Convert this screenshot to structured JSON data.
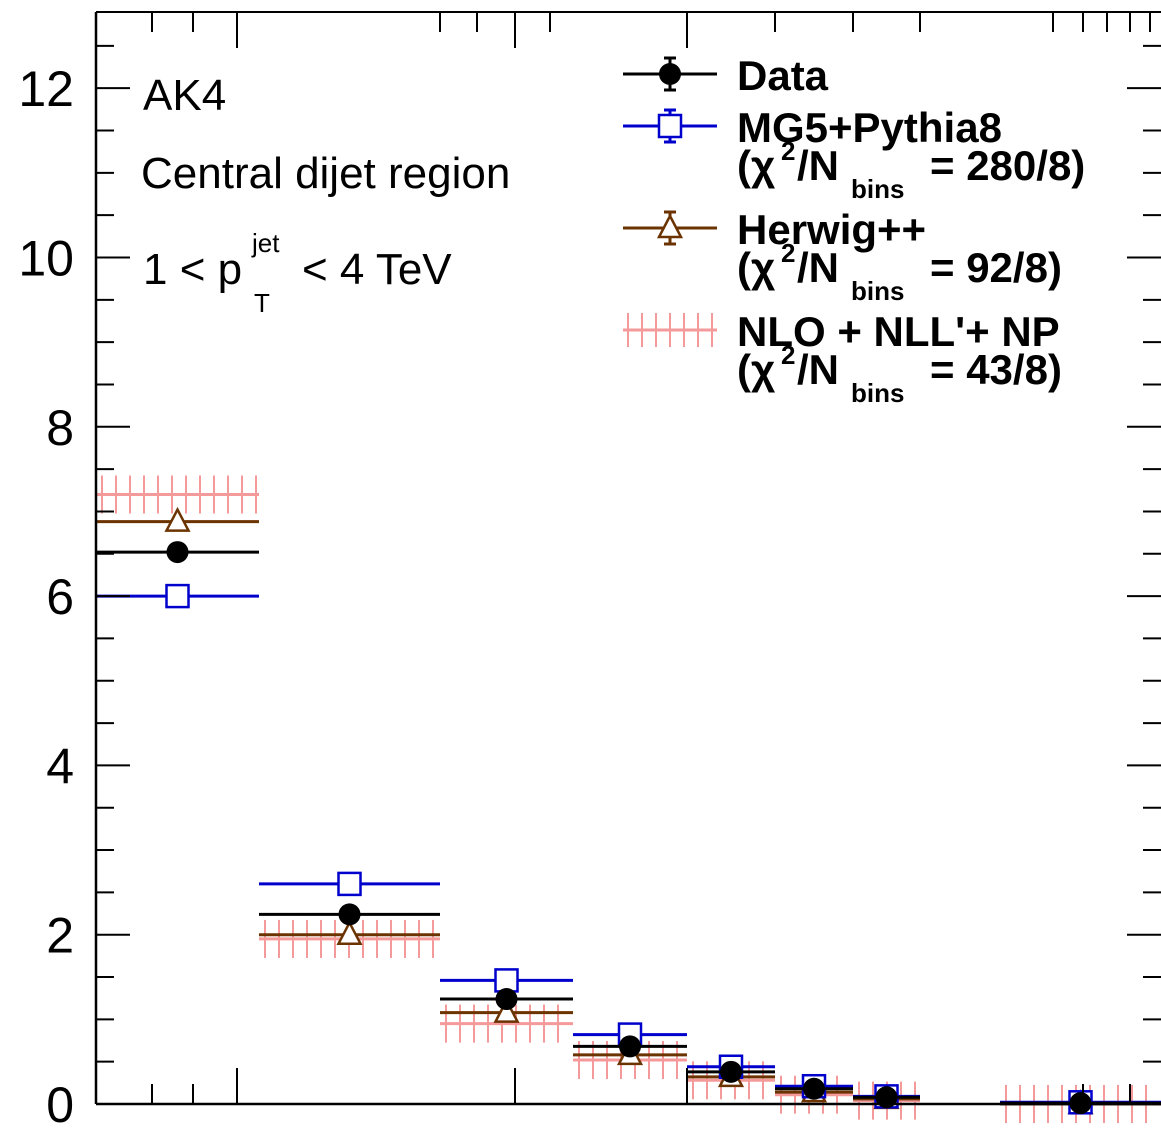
{
  "chart_data": {
    "type": "scatter",
    "x_bin_edges": [
      0,
      1,
      2,
      3,
      4,
      5,
      6,
      7,
      8,
      9
    ],
    "ylim": [
      0,
      12.9
    ],
    "y_ticks": [
      "0",
      "2",
      "4",
      "6",
      "8",
      "10",
      "12"
    ],
    "xlabel": "",
    "ylabel": "",
    "grid": false,
    "legend_position": "top-right",
    "annotations": {
      "jet_algo": "AK4",
      "region": "Central dijet region",
      "pt_prefix": "1 < p",
      "pt_sup": "jet",
      "pt_sub": "T",
      "pt_suffix": "< 4 TeV"
    },
    "series": [
      {
        "name": "NLO + NLL'+ NP",
        "chi2_label": "= 43/8)",
        "color": "#f59a9a",
        "style": "hatched-band",
        "values": [
          7.2,
          1.95,
          0.95,
          0.52,
          0.28,
          0.11,
          0.04,
          null,
          0.0
        ]
      },
      {
        "name": "Herwig++",
        "chi2_label": "= 92/8)",
        "color": "#6b3300",
        "marker": "open-triangle",
        "values": [
          6.88,
          2.0,
          1.08,
          0.58,
          0.32,
          0.14,
          0.06,
          null,
          0.0
        ]
      },
      {
        "name": "MG5+Pythia8",
        "chi2_label": "= 280/8)",
        "color": "#0000cc",
        "marker": "open-square",
        "values": [
          6.0,
          2.6,
          1.46,
          0.82,
          0.44,
          0.21,
          0.09,
          null,
          0.02
        ]
      },
      {
        "name": "Data",
        "color": "#000000",
        "marker": "filled-circle",
        "values": [
          6.52,
          2.24,
          1.24,
          0.68,
          0.38,
          0.18,
          0.08,
          null,
          0.01
        ],
        "errors": [
          0.06,
          0.12,
          0.06,
          0.04,
          0.03,
          0.02,
          0.01,
          null,
          0.01
        ]
      }
    ]
  }
}
